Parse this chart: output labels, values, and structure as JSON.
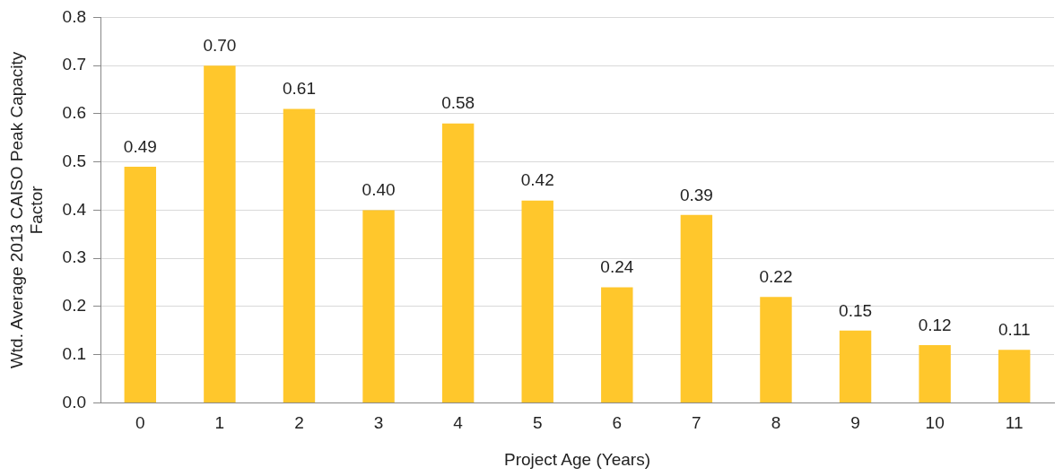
{
  "chart_data": {
    "type": "bar",
    "xlabel": "Project Age (Years)",
    "ylabel": "Wtd. Average 2013 CAISO Peak Capacity Factor",
    "categories": [
      "0",
      "1",
      "2",
      "3",
      "4",
      "5",
      "6",
      "7",
      "8",
      "9",
      "10",
      "11"
    ],
    "values": [
      0.49,
      0.7,
      0.61,
      0.4,
      0.58,
      0.42,
      0.24,
      0.39,
      0.22,
      0.15,
      0.12,
      0.11
    ],
    "value_labels": [
      "0.49",
      "0.70",
      "0.61",
      "0.40",
      "0.58",
      "0.42",
      "0.24",
      "0.39",
      "0.22",
      "0.15",
      "0.12",
      "0.11"
    ],
    "color": "#ffc72c",
    "ylim": [
      0,
      0.8
    ],
    "yticks": [
      {
        "value": 0,
        "label": "0.0"
      },
      0.1,
      0.2,
      0.3,
      0.4,
      0.5,
      0.6,
      0.7,
      0.8
    ],
    "grid": "y",
    "legend": false
  }
}
